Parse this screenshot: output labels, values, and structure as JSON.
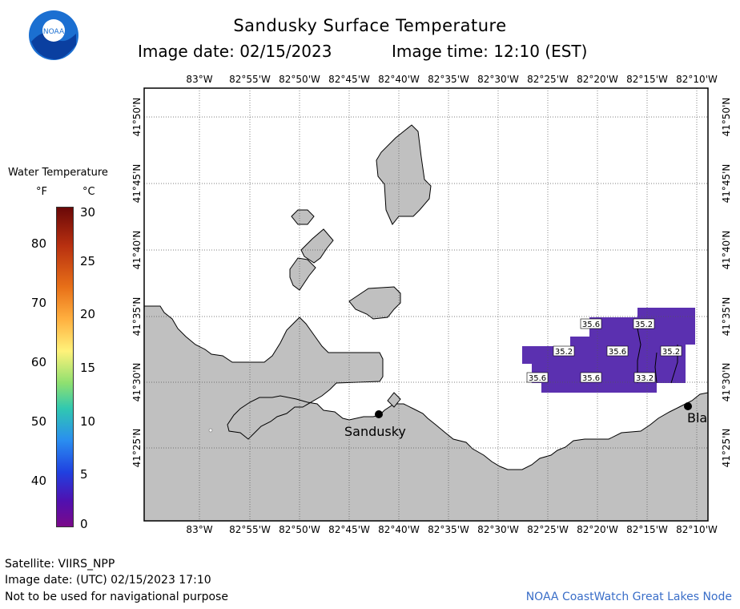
{
  "header": {
    "title": "Sandusky Surface Temperature",
    "image_date_label": "Image date: 02/15/2023",
    "image_time_label": "Image time: 12:10 (EST)"
  },
  "logo": {
    "text": "NOAA",
    "icon": "noaa-logo-icon",
    "colors": {
      "outer": "#1b6fd1",
      "inner": "#ffffff",
      "wave": "#0a3fa0"
    }
  },
  "legend": {
    "title": "Water Temperature",
    "unit_f": "°F",
    "unit_c": "°C",
    "f_ticks": [
      "80",
      "70",
      "60",
      "50",
      "40"
    ],
    "c_ticks": [
      "30",
      "25",
      "20",
      "15",
      "10",
      "5",
      "0"
    ],
    "color_stops": [
      "#7a0a0a",
      "#e0701a",
      "#ffe07a",
      "#39c39a",
      "#1e6ff2",
      "#7b0aa2"
    ]
  },
  "map": {
    "lon_labels": [
      "83°W",
      "82°55'W",
      "82°50'W",
      "82°45'W",
      "82°40'W",
      "82°35'W",
      "82°30'W",
      "82°25'W",
      "82°20'W",
      "82°15'W",
      "82°10'W"
    ],
    "lat_labels": [
      "41°50'N",
      "41°45'N",
      "41°40'N",
      "41°35'N",
      "41°30'N",
      "41°25'N"
    ],
    "land_color": "#c0c0c0",
    "water_color": "#ffffff",
    "data_color": "#5b30b0",
    "cities": [
      {
        "name": "Sandusky"
      },
      {
        "name": "Bla"
      }
    ],
    "temps": [
      "35.6",
      "35.2",
      "35.2",
      "35.6",
      "35.2",
      "35.6",
      "35.6",
      "33.2"
    ]
  },
  "footer": {
    "satellite": "Satellite: VIIRS_NPP",
    "utc_date": "Image date: (UTC) 02/15/2023  17:10",
    "disclaimer": "Not to be used for navigational purpose",
    "credit": "NOAA CoastWatch Great Lakes Node"
  }
}
